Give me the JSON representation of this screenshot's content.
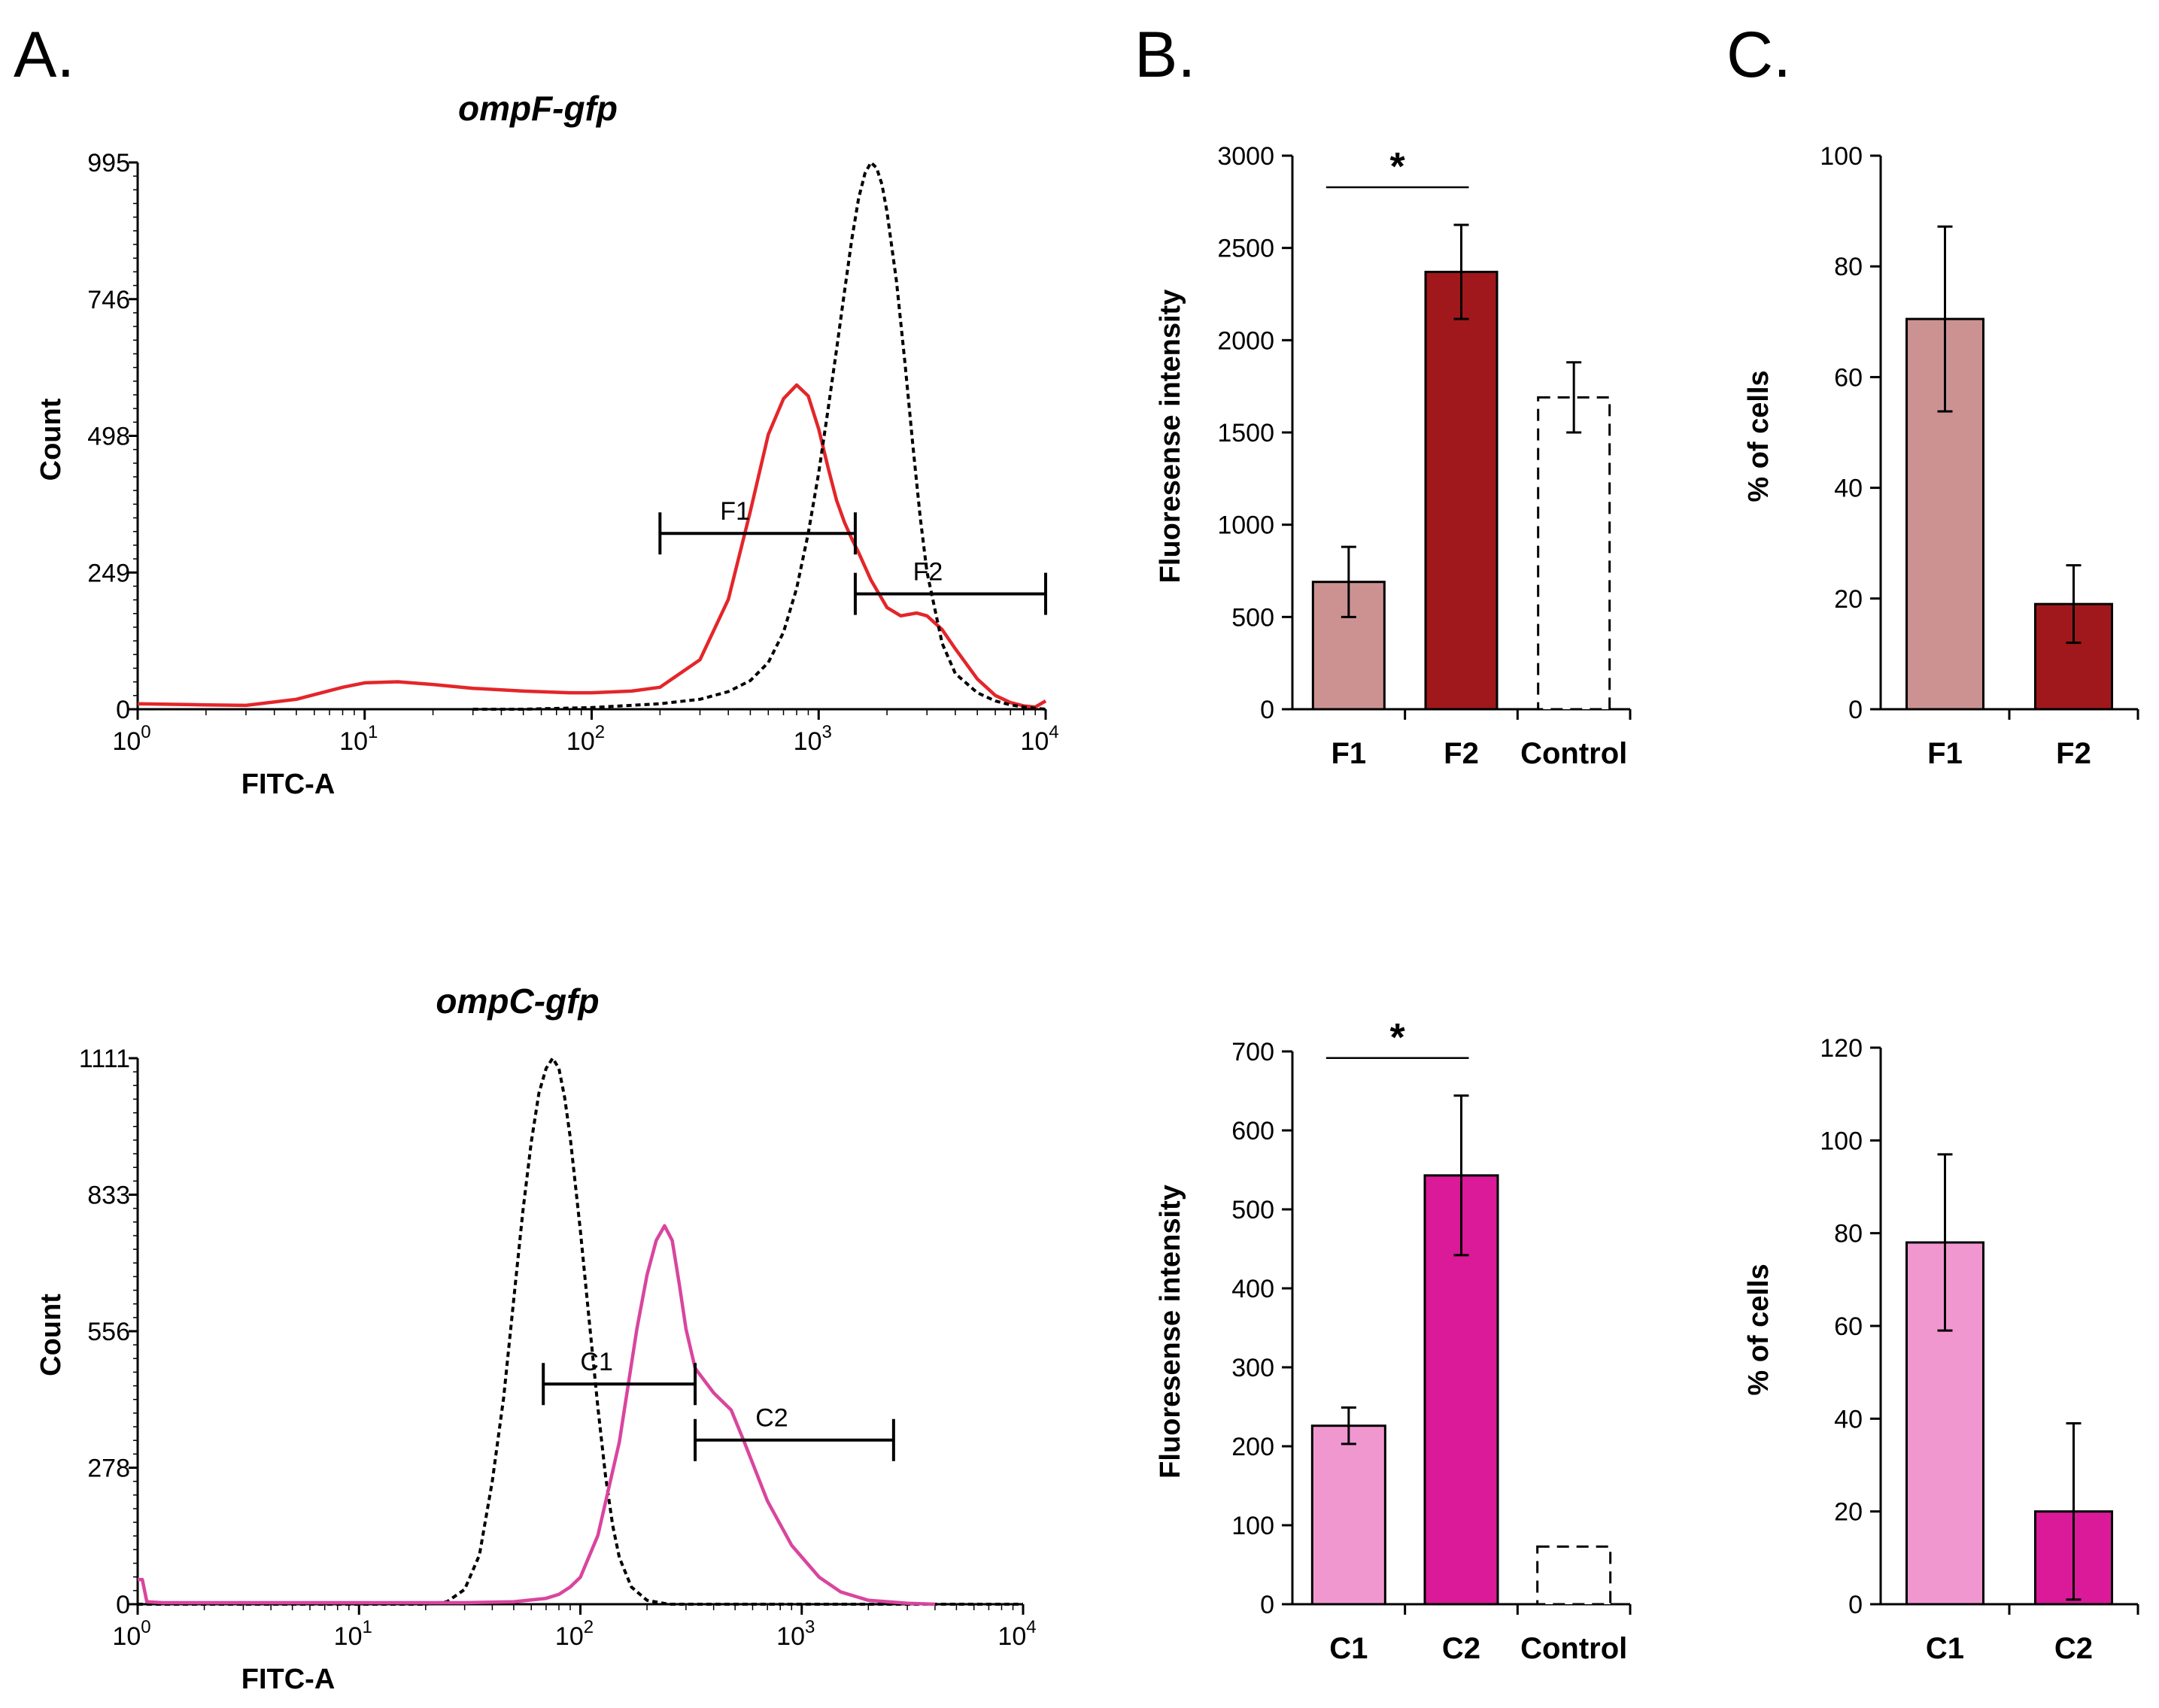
{
  "panel_labels": {
    "a": "A.",
    "b": "B.",
    "c": "C."
  },
  "chart_data": [
    {
      "id": "hist_top",
      "type": "line",
      "title": "ompF-gfp",
      "xlabel": "FITC-A",
      "ylabel": "Count",
      "xscale": "log",
      "xlim": [
        1,
        10000
      ],
      "ylim": [
        0,
        995
      ],
      "yticks": [
        "995",
        "746",
        "498",
        "249",
        "0"
      ],
      "xticks": [
        {
          "base": "10",
          "exp": "0"
        },
        {
          "base": "10",
          "exp": "1"
        },
        {
          "base": "10",
          "exp": "2"
        },
        {
          "base": "10",
          "exp": "3"
        },
        {
          "base": "10",
          "exp": "4"
        }
      ],
      "series": [
        {
          "name": "ompF-gfp",
          "color": "#e3262a",
          "dashed": false,
          "x": [
            1,
            2,
            3,
            5,
            8,
            10,
            14,
            20,
            30,
            50,
            80,
            100,
            150,
            200,
            300,
            400,
            500,
            600,
            700,
            800,
            900,
            1000,
            1100,
            1200,
            1300,
            1400,
            1500,
            1700,
            2000,
            2300,
            2700,
            3000,
            3500,
            4000,
            5000,
            6000,
            7000,
            8000,
            9000,
            10000
          ],
          "y": [
            10,
            8,
            7,
            18,
            40,
            48,
            50,
            45,
            38,
            33,
            30,
            30,
            33,
            40,
            90,
            200,
            360,
            500,
            565,
            590,
            570,
            510,
            440,
            380,
            340,
            310,
            285,
            235,
            185,
            170,
            175,
            170,
            145,
            110,
            55,
            25,
            12,
            6,
            4,
            15
          ]
        },
        {
          "name": "Control",
          "color": "#000000",
          "dashed": true,
          "x": [
            30,
            50,
            100,
            200,
            300,
            400,
            500,
            600,
            700,
            800,
            900,
            1000,
            1100,
            1200,
            1300,
            1400,
            1500,
            1600,
            1700,
            1800,
            1900,
            2000,
            2200,
            2400,
            2600,
            2800,
            3000,
            3500,
            4000,
            5000,
            6000,
            7000,
            8000,
            10000
          ],
          "y": [
            0,
            0,
            3,
            10,
            18,
            32,
            52,
            85,
            140,
            220,
            320,
            430,
            545,
            655,
            760,
            855,
            930,
            975,
            995,
            985,
            955,
            905,
            780,
            630,
            480,
            350,
            250,
            120,
            65,
            30,
            15,
            8,
            4,
            0
          ]
        }
      ],
      "gates": [
        {
          "label": "F1",
          "x_start": 200,
          "x_end": 1450,
          "y": 320
        },
        {
          "label": "F2",
          "x_start": 1450,
          "x_end": 10000,
          "y": 210
        }
      ]
    },
    {
      "id": "bar_top_B",
      "type": "bar",
      "ylabel": "Fluoresense intensity",
      "ylim": [
        0,
        3000
      ],
      "yticks": [
        "0",
        "500",
        "1000",
        "1500",
        "2000",
        "2500",
        "3000"
      ],
      "categories": [
        "F1",
        "F2",
        "Control"
      ],
      "values": [
        690,
        2370,
        1690
      ],
      "errors": [
        190,
        255,
        190
      ],
      "colors": [
        "#cc9292",
        "#a0181b",
        "#ffffff"
      ],
      "control_dashed": true,
      "significance": {
        "between": [
          0,
          1
        ],
        "label": "*"
      }
    },
    {
      "id": "bar_top_C",
      "type": "bar",
      "ylabel": "% of cells",
      "ylim": [
        0,
        100
      ],
      "yticks": [
        "0",
        "20",
        "40",
        "60",
        "80",
        "100"
      ],
      "categories": [
        "F1",
        "F2"
      ],
      "values": [
        70.5,
        19
      ],
      "errors": [
        16.7,
        7
      ],
      "colors": [
        "#cc9292",
        "#a0181b"
      ]
    },
    {
      "id": "hist_bottom",
      "type": "line",
      "title": "ompC-gfp",
      "xlabel": "FITC-A",
      "ylabel": "Count",
      "xscale": "log",
      "xlim": [
        1,
        10000
      ],
      "ylim": [
        0,
        1111
      ],
      "yticks": [
        "1111",
        "833",
        "556",
        "278",
        "0"
      ],
      "xticks": [
        {
          "base": "10",
          "exp": "0"
        },
        {
          "base": "10",
          "exp": "1"
        },
        {
          "base": "10",
          "exp": "2"
        },
        {
          "base": "10",
          "exp": "3"
        },
        {
          "base": "10",
          "exp": "4"
        }
      ],
      "series": [
        {
          "name": "Control",
          "color": "#000000",
          "dashed": true,
          "x": [
            1,
            10,
            20,
            25,
            30,
            35,
            40,
            45,
            50,
            55,
            60,
            65,
            70,
            75,
            80,
            85,
            90,
            100,
            110,
            120,
            130,
            140,
            150,
            170,
            200,
            250,
            300,
            10000
          ],
          "y": [
            0,
            0,
            0,
            5,
            30,
            100,
            250,
            420,
            620,
            800,
            940,
            1040,
            1090,
            1111,
            1090,
            1030,
            950,
            760,
            570,
            400,
            260,
            160,
            95,
            35,
            8,
            0,
            0,
            0
          ]
        },
        {
          "name": "ompC-gfp",
          "color": "#d9459e",
          "dashed": false,
          "x": [
            1,
            1.05,
            1.1,
            1.3,
            10,
            30,
            50,
            70,
            80,
            90,
            100,
            120,
            150,
            180,
            200,
            220,
            240,
            260,
            280,
            300,
            330,
            400,
            480,
            550,
            700,
            900,
            1200,
            1500,
            2000,
            3000,
            4000
          ],
          "y": [
            50,
            50,
            5,
            3,
            3,
            3,
            5,
            12,
            20,
            35,
            55,
            140,
            330,
            560,
            670,
            740,
            770,
            740,
            650,
            560,
            480,
            430,
            395,
            330,
            210,
            120,
            55,
            25,
            8,
            2,
            0
          ]
        }
      ],
      "gates": [
        {
          "label": "C1",
          "x_start": 68,
          "x_end": 330,
          "y": 448
        },
        {
          "label": "C2",
          "x_start": 330,
          "x_end": 2600,
          "y": 334
        }
      ]
    },
    {
      "id": "bar_bottom_B",
      "type": "bar",
      "ylabel": "Fluoresense intensity",
      "ylim": [
        0,
        700
      ],
      "yticks": [
        "0",
        "100",
        "200",
        "300",
        "400",
        "500",
        "600",
        "700"
      ],
      "categories": [
        "C1",
        "C2",
        "Control"
      ],
      "values": [
        226,
        543,
        73
      ],
      "errors": [
        23,
        101,
        0
      ],
      "colors": [
        "#f097d0",
        "#da1a98",
        "#ffffff"
      ],
      "control_dashed": true,
      "significance": {
        "between": [
          0,
          1
        ],
        "label": "*"
      }
    },
    {
      "id": "bar_bottom_C",
      "type": "bar",
      "ylabel": "% of cells",
      "ylim": [
        0,
        120
      ],
      "yticks": [
        "0",
        "20",
        "40",
        "60",
        "80",
        "100",
        "120"
      ],
      "categories": [
        "C1",
        "C2"
      ],
      "values": [
        78,
        20
      ],
      "errors": [
        19,
        19
      ],
      "colors": [
        "#f097d0",
        "#da1a98"
      ]
    }
  ]
}
